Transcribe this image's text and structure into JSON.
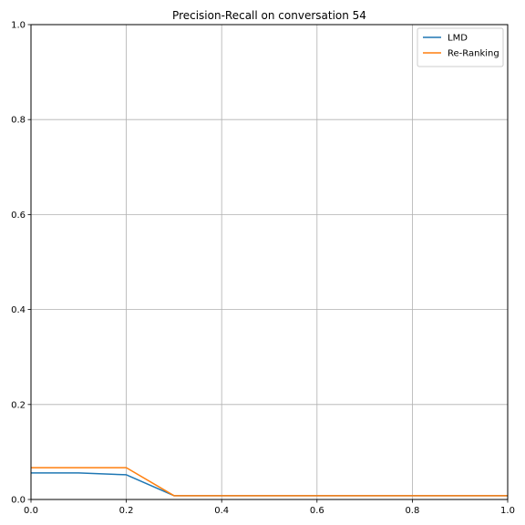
{
  "chart_data": {
    "type": "line",
    "title": "Precision-Recall on conversation 54",
    "xlabel": "",
    "ylabel": "",
    "xlim": [
      0.0,
      1.0
    ],
    "ylim": [
      0.0,
      1.0
    ],
    "xticks": [
      "0.0",
      "0.2",
      "0.4",
      "0.6",
      "0.8",
      "1.0"
    ],
    "yticks": [
      "0.0",
      "0.2",
      "0.4",
      "0.6",
      "0.8",
      "1.0"
    ],
    "grid": true,
    "legend_position": "top-right",
    "x": [
      0.0,
      0.1,
      0.2,
      0.3,
      0.4,
      0.5,
      0.6,
      0.7,
      0.8,
      0.9,
      1.0
    ],
    "series": [
      {
        "name": "LMD",
        "color": "#1f77b4",
        "values": [
          0.056,
          0.056,
          0.052,
          0.008,
          0.008,
          0.008,
          0.008,
          0.008,
          0.008,
          0.008,
          0.008
        ]
      },
      {
        "name": "Re-Ranking",
        "color": "#ff7f0e",
        "values": [
          0.067,
          0.067,
          0.067,
          0.008,
          0.008,
          0.008,
          0.008,
          0.008,
          0.008,
          0.008,
          0.008
        ]
      }
    ]
  }
}
